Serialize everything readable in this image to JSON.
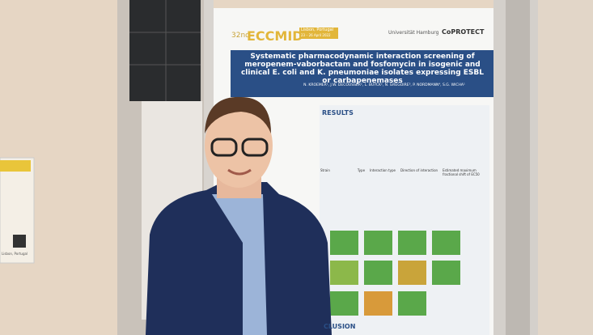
{
  "header": {
    "edition": "32nd",
    "congress": "ECCMID",
    "location": "Lisbon, Portugal",
    "dates": "23 – 26 April 2022",
    "university": "Universität Hamburg",
    "project": "CoPROTECT"
  },
  "poster": {
    "title": "Systematic pharmacodynamic interaction screening of meropenem-vaborbactam and fosfomycin in isogenic and clinical E. coli and K. pneumoniae isolates expressing ESBL or carbapenemases",
    "authors": "N. KROEMER¹, J.W. DECOUSSER², L. BUYCK², N. GRÉGOIRE³, P. NORDMANN⁴, S.G. WICHA¹",
    "sections": [
      "RESULTS",
      "CLUSION"
    ],
    "table_headers": [
      "Strain",
      "Type",
      "Interaction type",
      "Direction of interaction",
      "Estimated maximum fractional shift of EC50"
    ]
  },
  "side_poster": {
    "location": "Lisbon, Portugal"
  }
}
